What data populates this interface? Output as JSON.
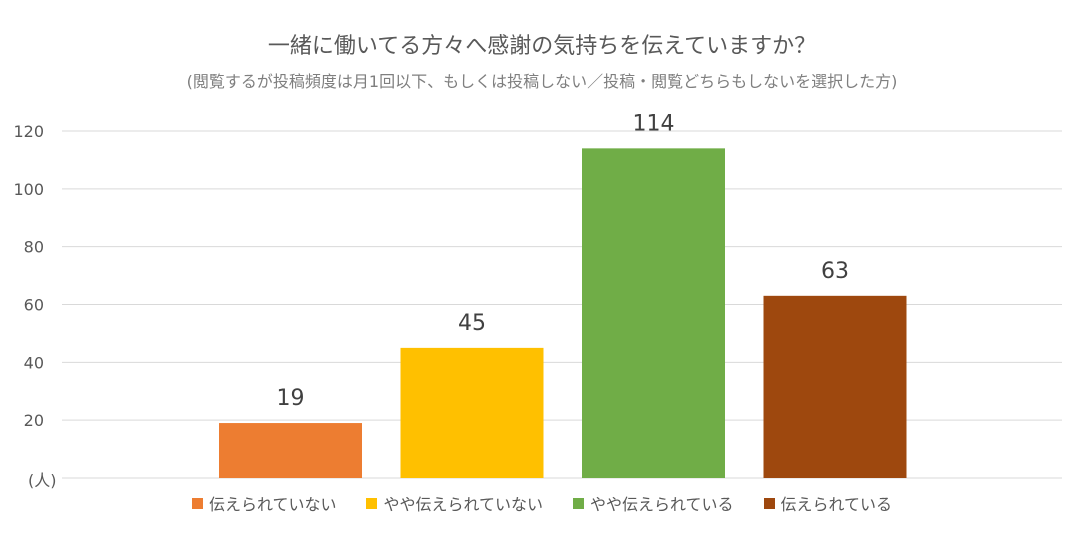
{
  "chart_data": {
    "type": "bar",
    "title": "一緒に働いてる方々へ感謝の気持ちを伝えていますか？",
    "subtitle": "(閲覧するが投稿頻度は月1回以下、もしくは投稿しない／投稿・閲覧どちらもしないを選択した方)",
    "unit_label": "(人)",
    "categories": [
      "伝えられていない",
      "やや伝えられていない",
      "やや伝えられている",
      "伝えられている"
    ],
    "values": [
      19,
      45,
      114,
      63
    ],
    "colors": [
      "#ED7D31",
      "#FFC000",
      "#70AD47",
      "#9E480E"
    ],
    "ylim": [
      0,
      120
    ],
    "yticks": [
      20,
      40,
      60,
      80,
      100,
      120
    ],
    "grid": true,
    "legend_position": "bottom"
  }
}
